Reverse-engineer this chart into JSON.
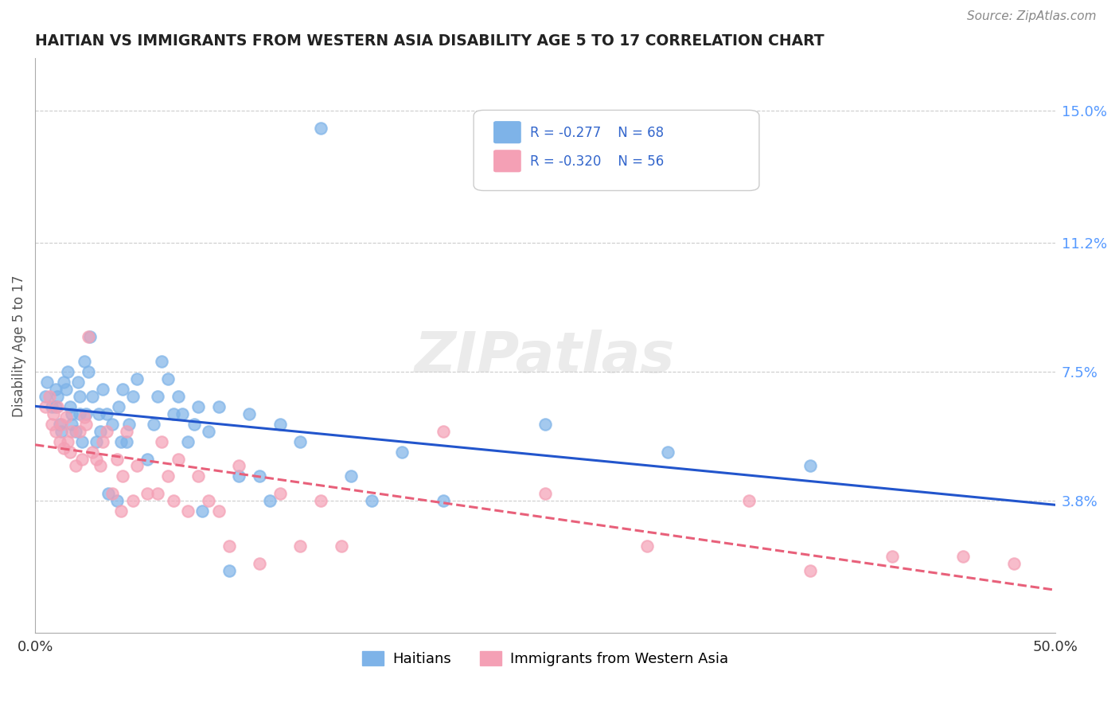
{
  "title": "HAITIAN VS IMMIGRANTS FROM WESTERN ASIA DISABILITY AGE 5 TO 17 CORRELATION CHART",
  "source": "Source: ZipAtlas.com",
  "xlabel": "",
  "ylabel": "Disability Age 5 to 17",
  "xlim": [
    0.0,
    0.5
  ],
  "ylim": [
    0.0,
    0.165
  ],
  "xticks": [
    0.0,
    0.1,
    0.2,
    0.3,
    0.4,
    0.5
  ],
  "xticklabels": [
    "0.0%",
    "",
    "",
    "",
    "",
    "50.0%"
  ],
  "right_yticks": [
    0.15,
    0.112,
    0.075,
    0.038
  ],
  "right_yticklabels": [
    "15.0%",
    "11.2%",
    "7.5%",
    "3.8%"
  ],
  "blue_R": "-0.277",
  "blue_N": "68",
  "pink_R": "-0.320",
  "pink_N": "56",
  "blue_color": "#7EB3E8",
  "pink_color": "#F4A0B5",
  "blue_line_color": "#2255CC",
  "pink_line_color": "#E8607A",
  "background_color": "#ffffff",
  "grid_color": "#cccccc",
  "watermark": "ZIPatlas",
  "legend_label_blue": "Haitians",
  "legend_label_pink": "Immigrants from Western Asia",
  "blue_x": [
    0.005,
    0.006,
    0.008,
    0.01,
    0.01,
    0.011,
    0.012,
    0.013,
    0.014,
    0.015,
    0.016,
    0.017,
    0.018,
    0.018,
    0.02,
    0.021,
    0.022,
    0.022,
    0.023,
    0.024,
    0.025,
    0.026,
    0.027,
    0.028,
    0.03,
    0.031,
    0.032,
    0.033,
    0.035,
    0.036,
    0.038,
    0.04,
    0.041,
    0.042,
    0.043,
    0.045,
    0.046,
    0.048,
    0.05,
    0.055,
    0.058,
    0.06,
    0.062,
    0.065,
    0.068,
    0.07,
    0.072,
    0.075,
    0.078,
    0.08,
    0.082,
    0.085,
    0.09,
    0.095,
    0.1,
    0.105,
    0.11,
    0.115,
    0.12,
    0.13,
    0.14,
    0.155,
    0.165,
    0.18,
    0.2,
    0.25,
    0.31,
    0.38
  ],
  "blue_y": [
    0.068,
    0.072,
    0.065,
    0.07,
    0.065,
    0.068,
    0.06,
    0.058,
    0.072,
    0.07,
    0.075,
    0.065,
    0.06,
    0.063,
    0.058,
    0.072,
    0.063,
    0.068,
    0.055,
    0.078,
    0.063,
    0.075,
    0.085,
    0.068,
    0.055,
    0.063,
    0.058,
    0.07,
    0.063,
    0.04,
    0.06,
    0.038,
    0.065,
    0.055,
    0.07,
    0.055,
    0.06,
    0.068,
    0.073,
    0.05,
    0.06,
    0.068,
    0.078,
    0.073,
    0.063,
    0.068,
    0.063,
    0.055,
    0.06,
    0.065,
    0.035,
    0.058,
    0.065,
    0.018,
    0.045,
    0.063,
    0.045,
    0.038,
    0.06,
    0.055,
    0.145,
    0.045,
    0.038,
    0.052,
    0.038,
    0.06,
    0.052,
    0.048
  ],
  "pink_x": [
    0.005,
    0.007,
    0.008,
    0.009,
    0.01,
    0.011,
    0.012,
    0.013,
    0.014,
    0.015,
    0.016,
    0.017,
    0.018,
    0.02,
    0.022,
    0.023,
    0.024,
    0.025,
    0.026,
    0.028,
    0.03,
    0.032,
    0.033,
    0.035,
    0.038,
    0.04,
    0.042,
    0.043,
    0.045,
    0.048,
    0.05,
    0.055,
    0.06,
    0.062,
    0.065,
    0.068,
    0.07,
    0.075,
    0.08,
    0.085,
    0.09,
    0.095,
    0.1,
    0.11,
    0.12,
    0.13,
    0.14,
    0.15,
    0.2,
    0.25,
    0.3,
    0.35,
    0.38,
    0.42,
    0.455,
    0.48
  ],
  "pink_y": [
    0.065,
    0.068,
    0.06,
    0.063,
    0.058,
    0.065,
    0.055,
    0.06,
    0.053,
    0.062,
    0.055,
    0.052,
    0.058,
    0.048,
    0.058,
    0.05,
    0.062,
    0.06,
    0.085,
    0.052,
    0.05,
    0.048,
    0.055,
    0.058,
    0.04,
    0.05,
    0.035,
    0.045,
    0.058,
    0.038,
    0.048,
    0.04,
    0.04,
    0.055,
    0.045,
    0.038,
    0.05,
    0.035,
    0.045,
    0.038,
    0.035,
    0.025,
    0.048,
    0.02,
    0.04,
    0.025,
    0.038,
    0.025,
    0.058,
    0.04,
    0.025,
    0.038,
    0.018,
    0.022,
    0.022,
    0.02
  ]
}
